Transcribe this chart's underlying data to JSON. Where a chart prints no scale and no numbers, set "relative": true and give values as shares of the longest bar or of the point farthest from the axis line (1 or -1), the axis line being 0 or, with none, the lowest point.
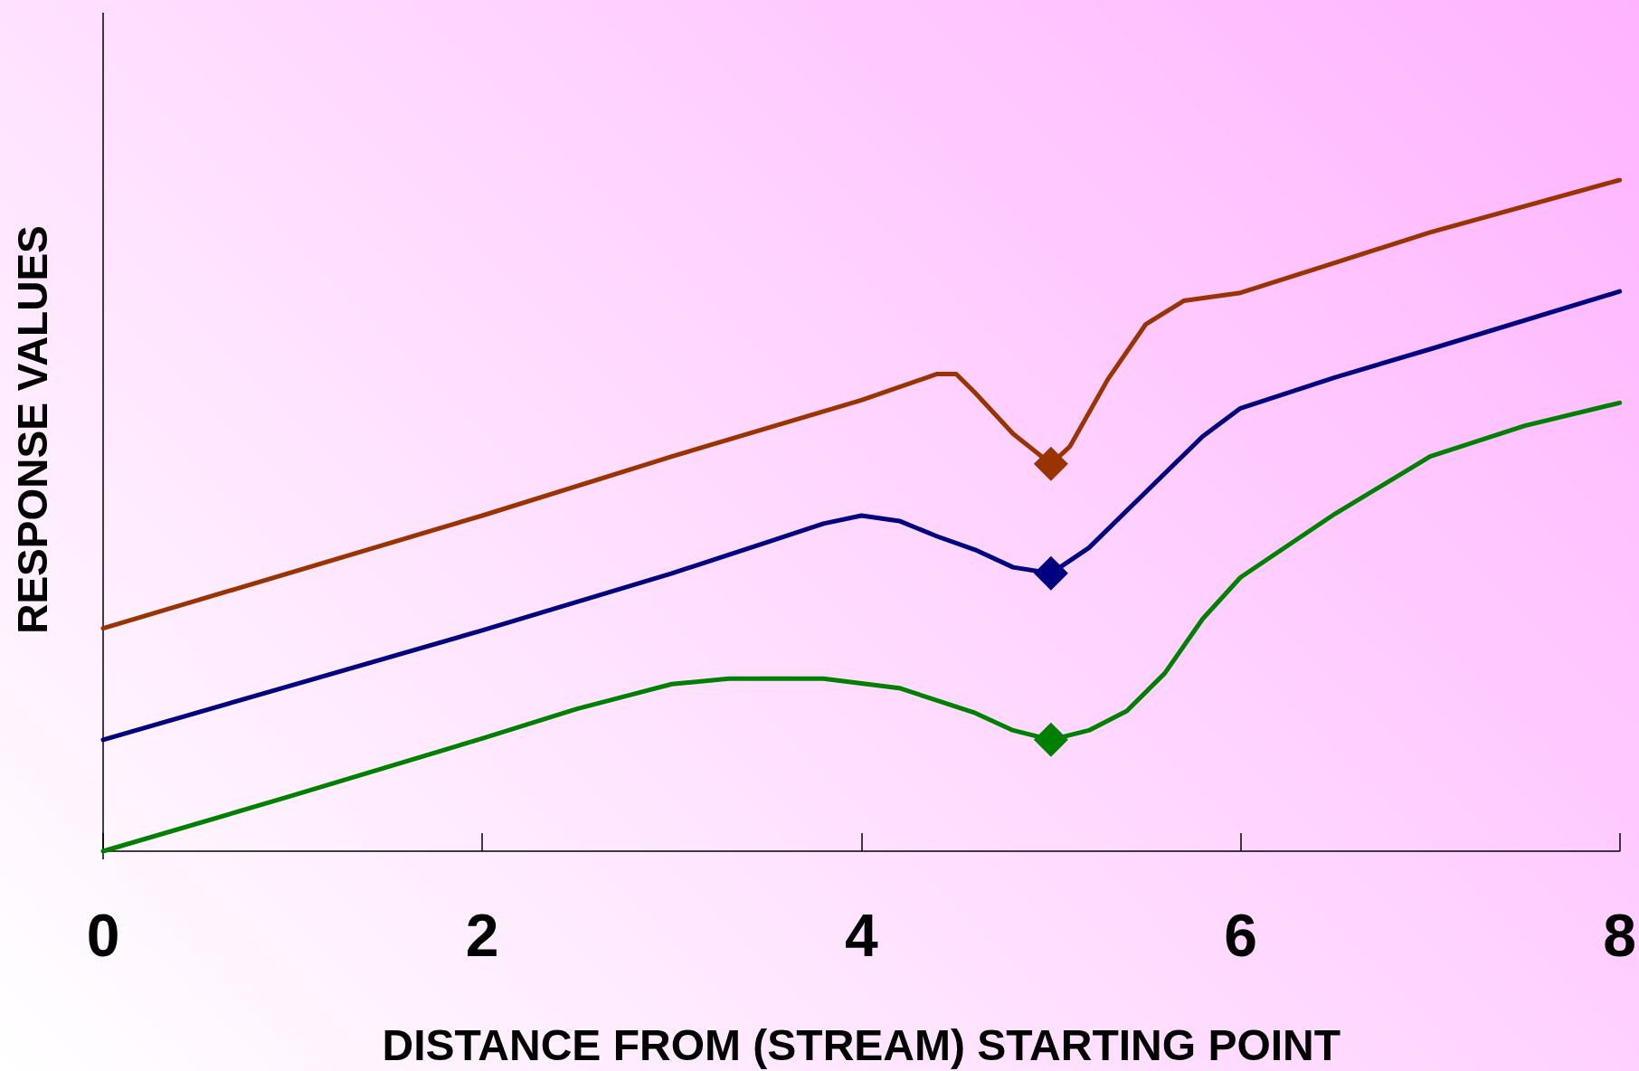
{
  "chart_data": {
    "type": "line",
    "relative": true,
    "xlabel": "DISTANCE FROM (STREAM) STARTING POINT",
    "ylabel": "RESPONSE VALUES",
    "xlim": [
      0,
      8
    ],
    "xticks": [
      0,
      2,
      4,
      6,
      8
    ],
    "grid": false,
    "marker": "none",
    "line_style": "solid",
    "series": [
      {
        "color": "#993300",
        "x": [
          0,
          2,
          3,
          4,
          4.4,
          4.5,
          4.6,
          4.8,
          5,
          5.1,
          5.3,
          5.5,
          5.7,
          6,
          6.5,
          7,
          8
        ],
        "values": [
          0.332,
          0.5,
          0.588,
          0.672,
          0.711,
          0.711,
          0.683,
          0.622,
          0.577,
          0.603,
          0.703,
          0.785,
          0.82,
          0.832,
          0.877,
          0.922,
          1
        ]
      },
      {
        "color": "#000080",
        "x": [
          0,
          2,
          3,
          3.5,
          3.8,
          4,
          4.2,
          4.4,
          4.6,
          4.8,
          5,
          5.2,
          5.5,
          5.8,
          6,
          6.5,
          7,
          8
        ],
        "values": [
          0.166,
          0.329,
          0.414,
          0.46,
          0.488,
          0.5,
          0.492,
          0.469,
          0.449,
          0.423,
          0.414,
          0.452,
          0.535,
          0.618,
          0.66,
          0.706,
          0.748,
          0.834
        ]
      },
      {
        "color": "#008000",
        "x": [
          0,
          1,
          2,
          2.5,
          3,
          3.3,
          3.8,
          4.2,
          4.6,
          4.8,
          5,
          5.2,
          5.4,
          5.6,
          5.8,
          6,
          6.5,
          7,
          7.5,
          8
        ],
        "values": [
          0,
          0.083,
          0.168,
          0.212,
          0.249,
          0.257,
          0.257,
          0.243,
          0.206,
          0.18,
          0.166,
          0.18,
          0.209,
          0.265,
          0.346,
          0.408,
          0.503,
          0.588,
          0.634,
          0.668
        ]
      },
      {
        "type": "scatter",
        "marker": "diamond",
        "color": "#993300",
        "x": [
          5
        ],
        "values": [
          0.577
        ]
      },
      {
        "type": "scatter",
        "marker": "diamond",
        "color": "#000080",
        "x": [
          5
        ],
        "values": [
          0.414
        ]
      },
      {
        "type": "scatter",
        "marker": "diamond",
        "color": "#008000",
        "x": [
          5
        ],
        "values": [
          0.166
        ]
      }
    ]
  }
}
